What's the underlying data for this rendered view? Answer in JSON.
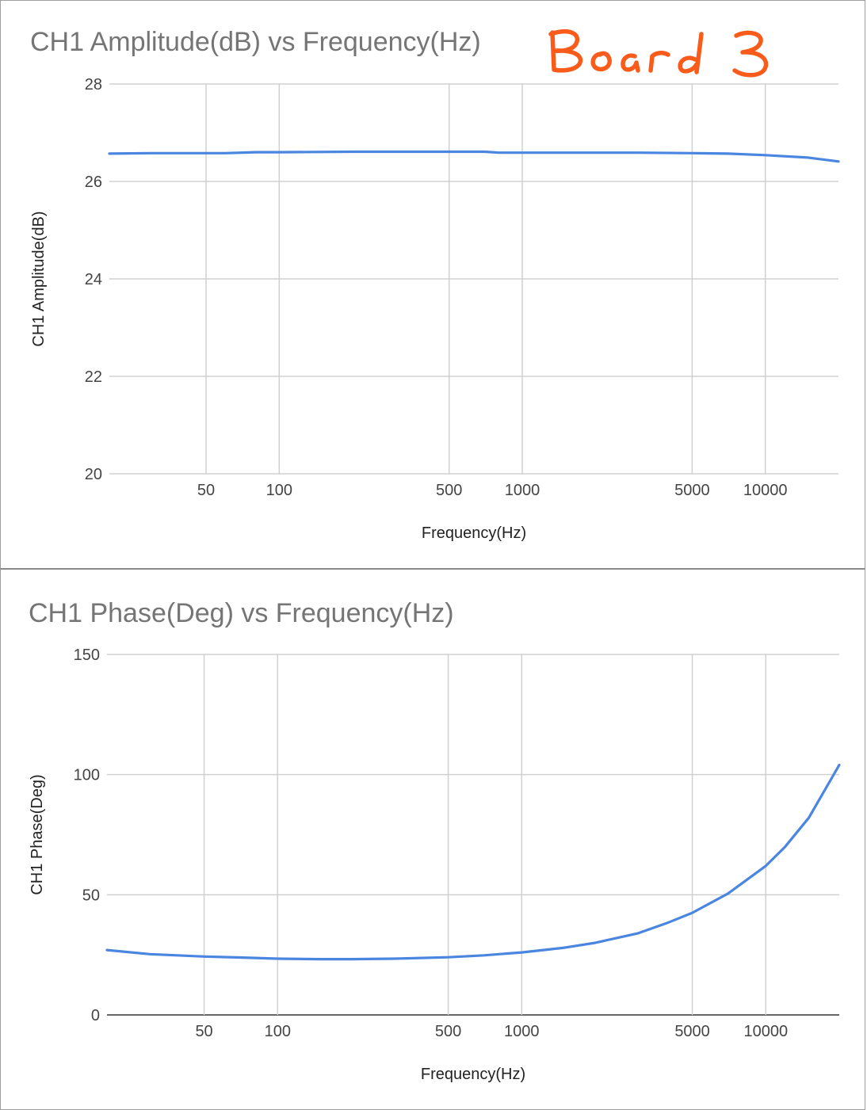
{
  "annotation": {
    "handwritten_text": "Board 3",
    "color": "#f95c1a"
  },
  "chart_data": [
    {
      "type": "line",
      "title": "CH1 Amplitude(dB) vs Frequency(Hz)",
      "xlabel": "Frequency(Hz)",
      "ylabel": "CH1 Amplitude(dB)",
      "xscale": "log",
      "xlim": [
        20,
        20000
      ],
      "ylim": [
        20,
        28
      ],
      "xticks": [
        50,
        100,
        500,
        1000,
        5000,
        10000
      ],
      "xtick_labels": [
        "50",
        "100",
        "500",
        "1000",
        "5000",
        "10000"
      ],
      "yticks": [
        20,
        22,
        24,
        26,
        28
      ],
      "ytick_labels": [
        "20",
        "22",
        "24",
        "26",
        "28"
      ],
      "grid": true,
      "legend": "none",
      "line_color": "#4a86e0",
      "series": [
        {
          "x": [
            20,
            30,
            50,
            60,
            80,
            100,
            200,
            300,
            500,
            700,
            800,
            1000,
            2000,
            3000,
            5000,
            7000,
            10000,
            15000,
            20000
          ],
          "values": [
            26.57,
            26.58,
            26.58,
            26.58,
            26.6,
            26.6,
            26.61,
            26.61,
            26.61,
            26.61,
            26.59,
            26.59,
            26.59,
            26.59,
            26.58,
            26.57,
            26.54,
            26.49,
            26.41
          ]
        }
      ]
    },
    {
      "type": "line",
      "title": "CH1 Phase(Deg) vs Frequency(Hz)",
      "xlabel": "Frequency(Hz)",
      "ylabel": "CH1 Phase(Deg)",
      "xscale": "log",
      "xlim": [
        20,
        20000
      ],
      "ylim": [
        0,
        150
      ],
      "xticks": [
        50,
        100,
        500,
        1000,
        5000,
        10000
      ],
      "xtick_labels": [
        "50",
        "100",
        "500",
        "1000",
        "5000",
        "10000"
      ],
      "yticks": [
        0,
        50,
        100,
        150
      ],
      "ytick_labels": [
        "0",
        "50",
        "100",
        "150"
      ],
      "grid": true,
      "legend": "none",
      "line_color": "#4a86e0",
      "series": [
        {
          "x": [
            20,
            30,
            50,
            70,
            100,
            150,
            200,
            300,
            500,
            700,
            1000,
            1500,
            2000,
            3000,
            4000,
            5000,
            7000,
            10000,
            12000,
            15000,
            20000
          ],
          "values": [
            27,
            25.3,
            24.3,
            23.9,
            23.4,
            23.2,
            23.2,
            23.4,
            24,
            24.8,
            26,
            28,
            30,
            34,
            38.5,
            42.5,
            50.5,
            62,
            70,
            82,
            104
          ]
        }
      ]
    }
  ]
}
